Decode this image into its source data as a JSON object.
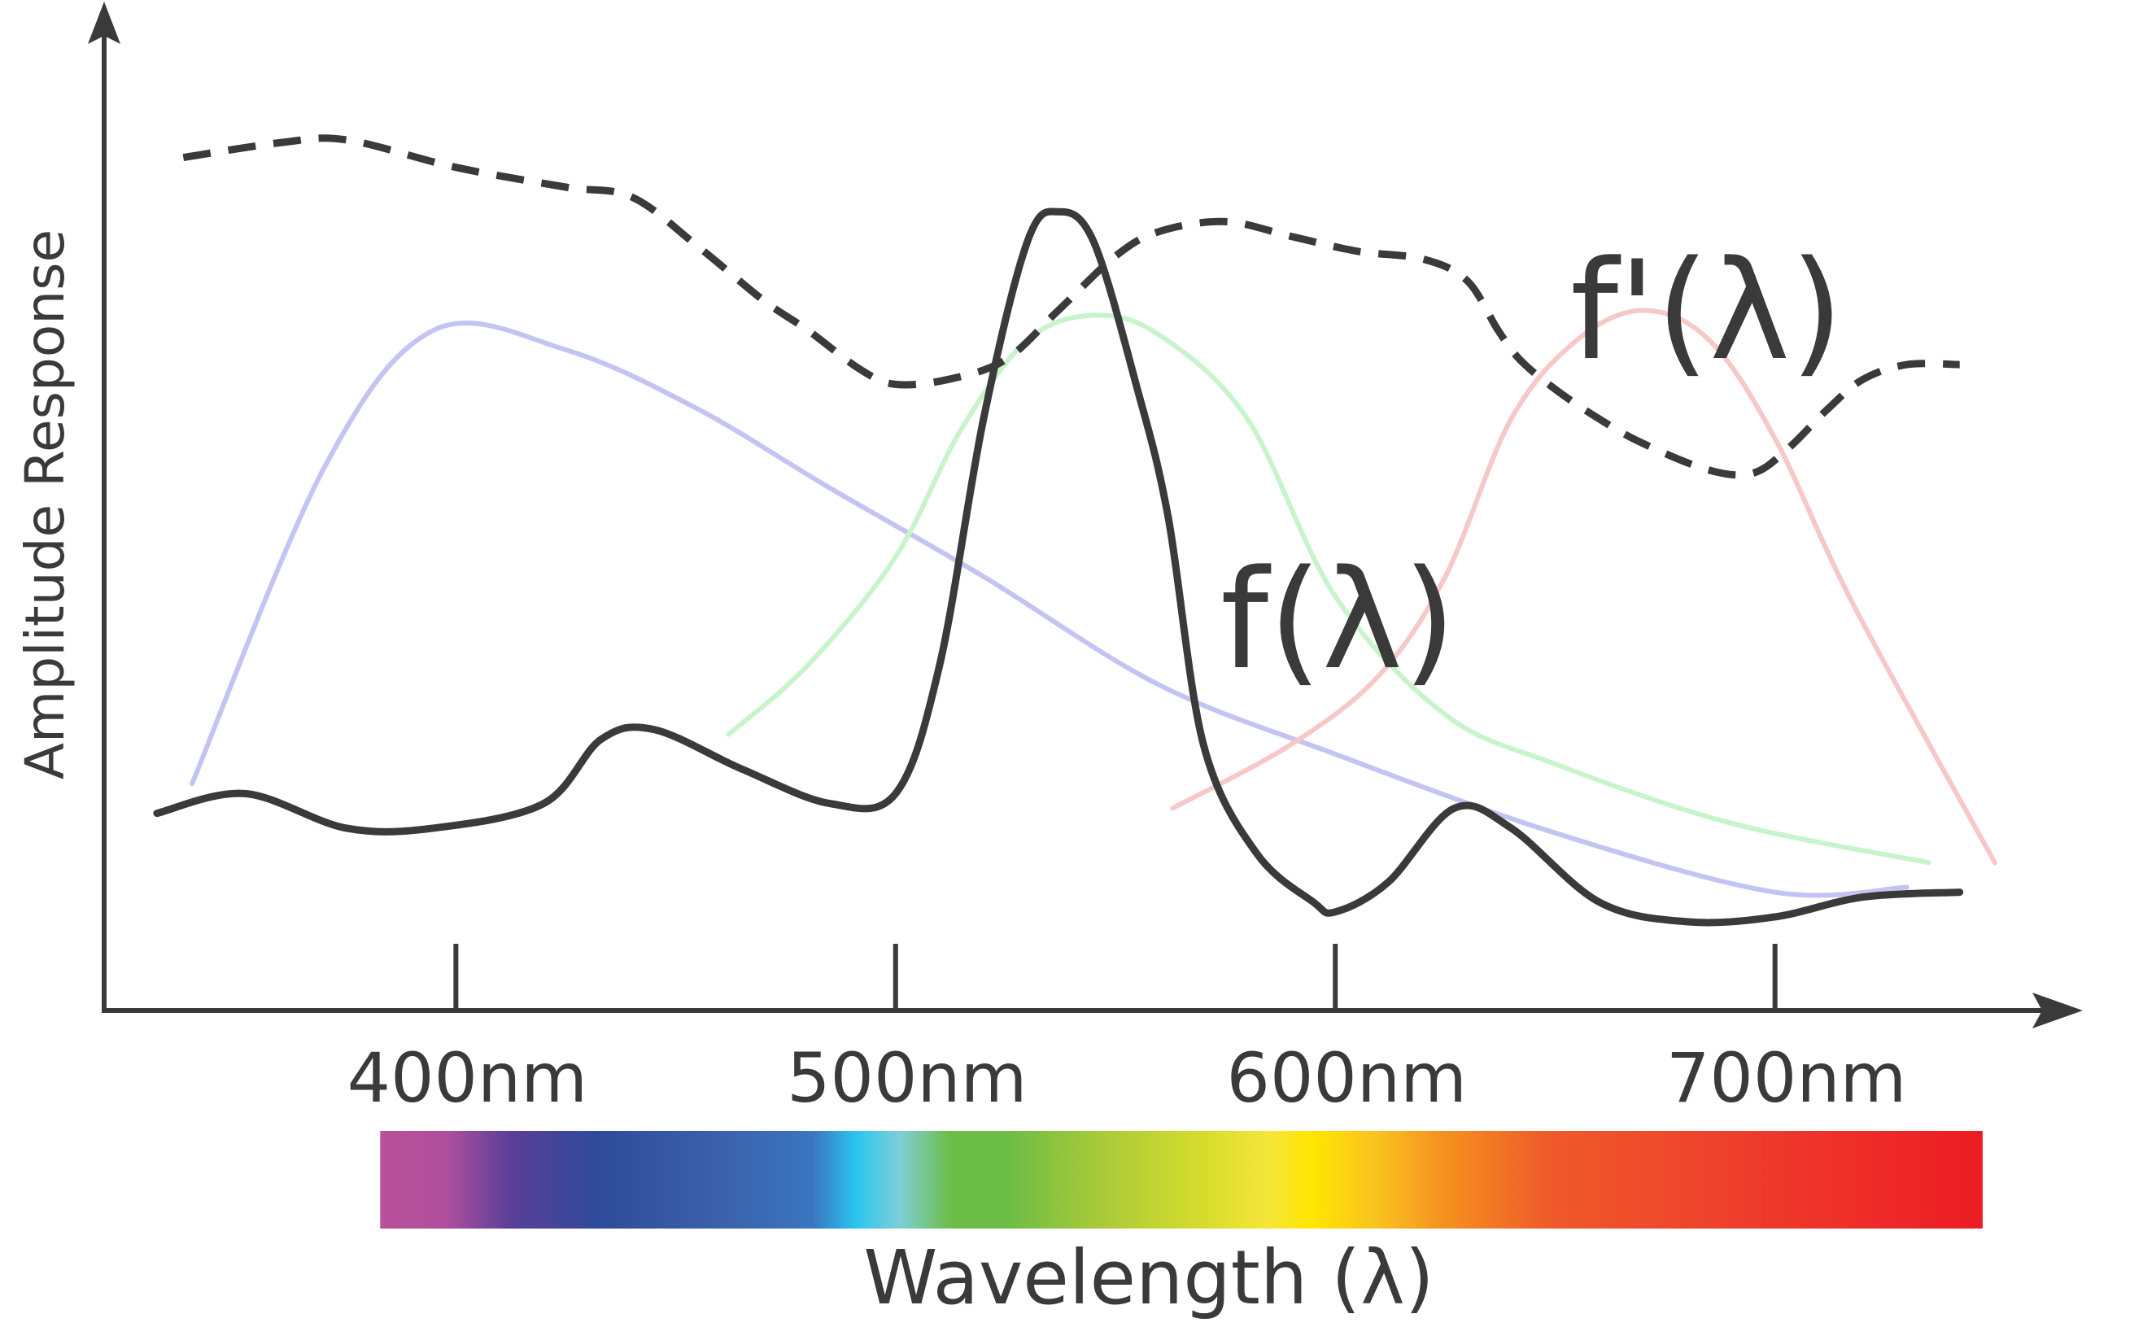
{
  "chart_data": {
    "type": "line",
    "title": "",
    "xlabel": "Wavelength (λ)",
    "ylabel": "Amplitude Response",
    "x_ticks": [
      {
        "value": 400,
        "label": "400nm"
      },
      {
        "value": 500,
        "label": "500nm"
      },
      {
        "value": 600,
        "label": "600nm"
      },
      {
        "value": 700,
        "label": "700nm"
      }
    ],
    "xlim": [
      320,
      770
    ],
    "ylim": [
      0,
      1
    ],
    "grid": false,
    "legend": "none",
    "spectrum_bar": {
      "range": [
        380,
        750
      ],
      "stops": [
        {
          "value": 380,
          "color": "#b8509a"
        },
        {
          "value": 395,
          "color": "#b04f9c"
        },
        {
          "value": 410,
          "color": "#5a3f98"
        },
        {
          "value": 430,
          "color": "#2f4a9a"
        },
        {
          "value": 460,
          "color": "#3c62ad"
        },
        {
          "value": 480,
          "color": "#3a76c0"
        },
        {
          "value": 490,
          "color": "#2ac6f0"
        },
        {
          "value": 500,
          "color": "#7fcfd8"
        },
        {
          "value": 512,
          "color": "#6cbd45"
        },
        {
          "value": 525,
          "color": "#6cbd45"
        },
        {
          "value": 545,
          "color": "#a6c93a"
        },
        {
          "value": 570,
          "color": "#d6dc2c"
        },
        {
          "value": 585,
          "color": "#f5e63a"
        },
        {
          "value": 595,
          "color": "#ffe600"
        },
        {
          "value": 610,
          "color": "#f9c31f"
        },
        {
          "value": 625,
          "color": "#f5921f"
        },
        {
          "value": 650,
          "color": "#ef5a2a"
        },
        {
          "value": 700,
          "color": "#ee3a2c"
        },
        {
          "value": 750,
          "color": "#ed1c24"
        }
      ]
    },
    "series": [
      {
        "name": "f'(λ)",
        "style": "dashed",
        "color": "#3a3a3a",
        "x": [
          338,
          360,
          375,
          400,
          425,
          440,
          455,
          470,
          480,
          492,
          500,
          512,
          525,
          537,
          550,
          560,
          575,
          590,
          605,
          620,
          630,
          637,
          642,
          650,
          660,
          670,
          685,
          695,
          703,
          712,
          720,
          730,
          742
        ],
        "y": [
          0.865,
          0.88,
          0.883,
          0.855,
          0.835,
          0.825,
          0.775,
          0.72,
          0.69,
          0.65,
          0.635,
          0.64,
          0.66,
          0.71,
          0.765,
          0.79,
          0.8,
          0.785,
          0.77,
          0.762,
          0.74,
          0.69,
          0.66,
          0.63,
          0.6,
          0.575,
          0.548,
          0.545,
          0.57,
          0.61,
          0.64,
          0.655,
          0.655
        ]
      },
      {
        "name": "f(λ)",
        "style": "solid",
        "color": "#3a3a3a",
        "x": [
          332,
          352,
          375,
          395,
          420,
          433,
          445,
          465,
          485,
          500,
          510,
          520,
          530,
          537,
          545,
          555,
          562,
          570,
          582,
          595,
          600,
          612,
          627,
          640,
          660,
          680,
          700,
          720,
          742
        ],
        "y": [
          0.2,
          0.22,
          0.185,
          0.185,
          0.21,
          0.275,
          0.285,
          0.245,
          0.21,
          0.22,
          0.35,
          0.6,
          0.78,
          0.81,
          0.78,
          0.63,
          0.5,
          0.27,
          0.16,
          0.11,
          0.1,
          0.13,
          0.205,
          0.185,
          0.11,
          0.09,
          0.095,
          0.115,
          0.12
        ]
      },
      {
        "name": "",
        "style": "solid",
        "color": "#c4c4f4",
        "x": [
          340,
          370,
          395,
          425,
          455,
          485,
          520,
          560,
          600,
          650,
          700,
          730
        ],
        "y": [
          0.23,
          0.55,
          0.69,
          0.67,
          0.61,
          0.53,
          0.44,
          0.33,
          0.26,
          0.18,
          0.12,
          0.125
        ]
      },
      {
        "name": "",
        "style": "solid",
        "color": "#c8f4cc",
        "x": [
          462,
          480,
          500,
          515,
          530,
          545,
          560,
          580,
          600,
          625,
          650,
          690,
          735
        ],
        "y": [
          0.28,
          0.35,
          0.46,
          0.59,
          0.68,
          0.705,
          0.685,
          0.6,
          0.42,
          0.3,
          0.25,
          0.19,
          0.15
        ]
      },
      {
        "name": "",
        "style": "solid",
        "color": "#f7c8c8",
        "x": [
          563,
          590,
          610,
          625,
          640,
          655,
          670,
          685,
          700,
          718,
          750
        ],
        "y": [
          0.205,
          0.27,
          0.34,
          0.44,
          0.6,
          0.68,
          0.71,
          0.68,
          0.58,
          0.41,
          0.15
        ]
      }
    ],
    "annotations": [
      {
        "text": "f(λ)",
        "series": 1
      },
      {
        "text": "f'(λ)",
        "series": 0
      }
    ]
  }
}
